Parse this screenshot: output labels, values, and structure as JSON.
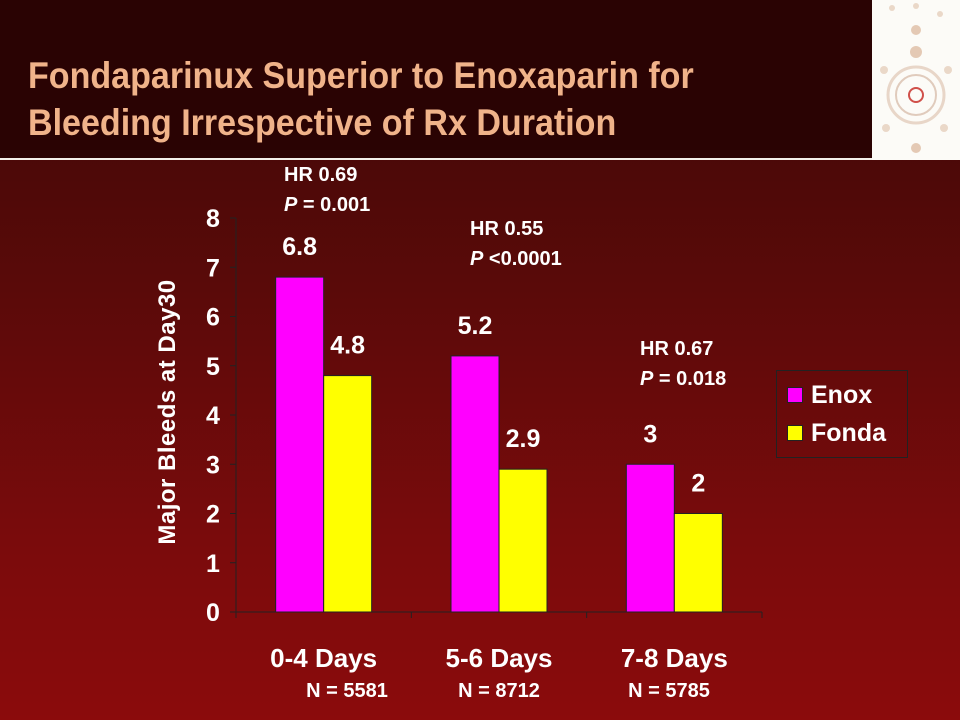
{
  "slide": {
    "title_line1": "Fondaparinux Superior to Enoxaparin for",
    "title_line2": "Bleeding Irrespective of Rx Duration"
  },
  "annotations": [
    {
      "hr": "HR 0.69",
      "p_prefix": "P",
      "p_rest": " = 0.001"
    },
    {
      "hr": "HR 0.55",
      "p_prefix": "P",
      "p_rest": " <0.0001"
    },
    {
      "hr": "HR 0.67",
      "p_prefix": "P",
      "p_rest": " = 0.018"
    }
  ],
  "n_labels": [
    "N = 5581",
    "N = 8712",
    "N = 5785"
  ],
  "colors": {
    "enox": "#ff00ff",
    "fonda": "#ffff00",
    "title": "#f0b38a"
  },
  "chart_data": {
    "type": "bar",
    "categories": [
      "0-4 Days",
      "5-6 Days",
      "7-8 Days"
    ],
    "series": [
      {
        "name": "Enox",
        "values": [
          6.8,
          5.2,
          3
        ],
        "labels": [
          "6.8",
          "5.2",
          "3"
        ]
      },
      {
        "name": "Fonda",
        "values": [
          4.8,
          2.9,
          2
        ],
        "labels": [
          "4.8",
          "2.9",
          "2"
        ]
      }
    ],
    "ylabel": "Major Bleeds at Day30",
    "ylim": [
      0,
      8
    ],
    "yticks": [
      "0",
      "1",
      "2",
      "3",
      "4",
      "5",
      "6",
      "7",
      "8"
    ],
    "grid": false,
    "legend_position": "right"
  }
}
